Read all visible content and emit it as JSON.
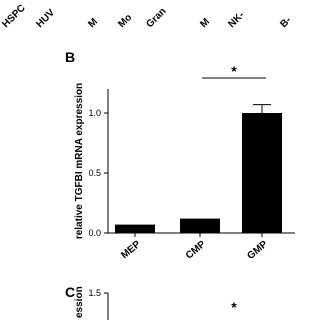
{
  "top_labels": [
    "HSPC",
    "HUV",
    "M",
    "Mo",
    "Gran",
    "M",
    "NK-",
    "B-"
  ],
  "chart_data": [
    {
      "type": "bar",
      "panel": "B",
      "y_label": "relative TGFBI mRNA expression",
      "categories": [
        "MEP",
        "CMP",
        "GMP"
      ],
      "values": [
        0.07,
        0.12,
        1.0
      ],
      "errors": [
        null,
        null,
        0.07
      ],
      "color": "#000000",
      "ylim": [
        0,
        1.2
      ],
      "yticks": [
        {
          "value": 0,
          "label": "0.0"
        },
        {
          "value": 0.5,
          "label": "0.5"
        },
        {
          "value": 1,
          "label": "1.0"
        }
      ],
      "annotation": "*"
    },
    {
      "type": "bar",
      "panel": "C",
      "y_label": "ession",
      "categories": [],
      "values": [],
      "color": "#000000",
      "ylim": [
        0,
        1.5
      ],
      "yticks": [
        {
          "value": 1.5,
          "label": "1.5"
        }
      ],
      "annotation": "*"
    }
  ]
}
